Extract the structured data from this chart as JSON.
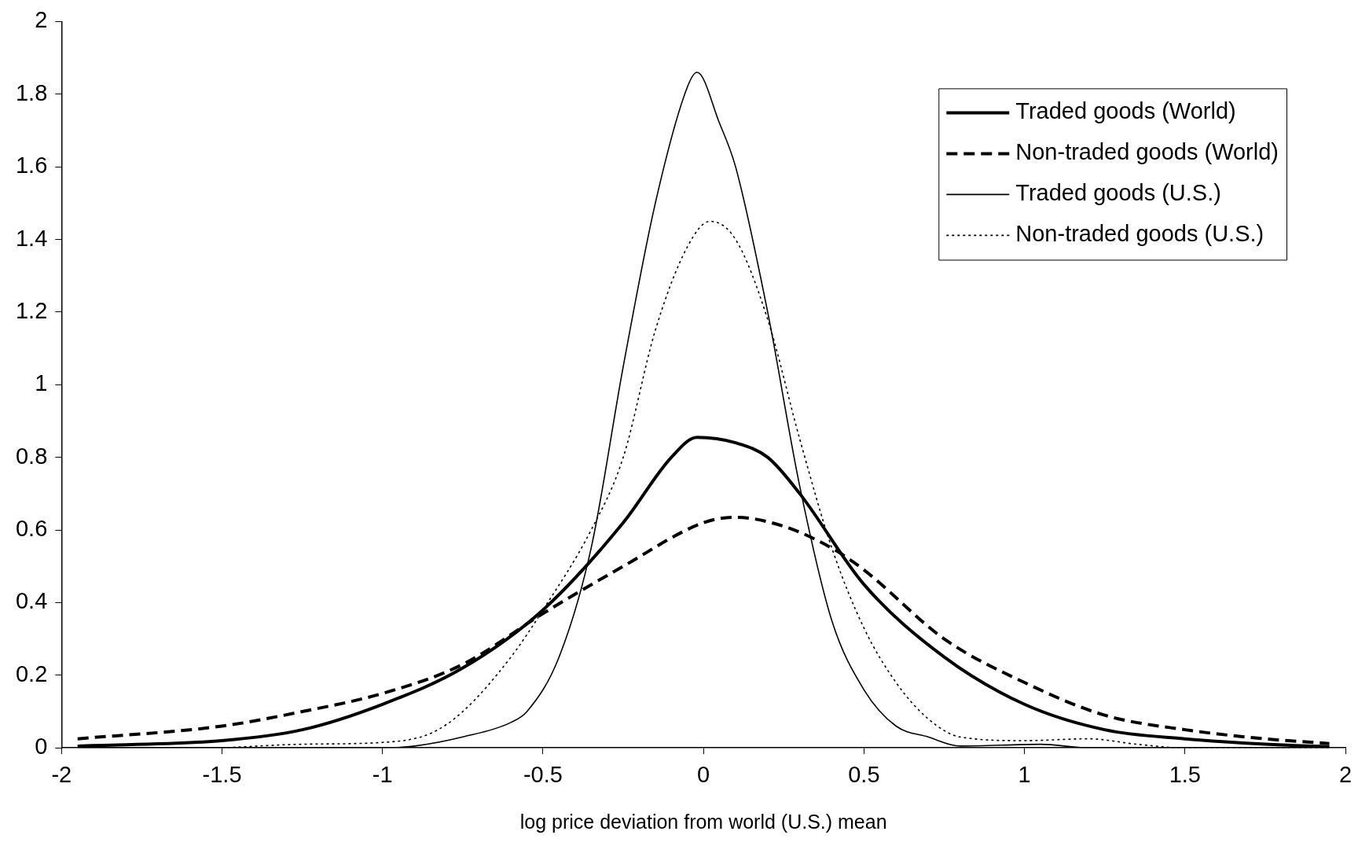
{
  "chart_data": {
    "type": "line",
    "xlabel": "log price deviation from world (U.S.) mean",
    "xlim": [
      -2,
      2
    ],
    "xticks": [
      -2,
      -1.5,
      -1,
      -0.5,
      0,
      0.5,
      1,
      1.5,
      2
    ],
    "ylim": [
      0,
      2
    ],
    "yticks": [
      0,
      0.2,
      0.4,
      0.6,
      0.8,
      1,
      1.2,
      1.4,
      1.6,
      1.8,
      2
    ],
    "grid": false,
    "legend": "top right",
    "marker": "none",
    "series": [
      {
        "name": "Traded goods (World)",
        "color": "#000000",
        "line_style": "solid",
        "x": [
          -1.95,
          -1.5,
          -1.25,
          -1,
          -0.75,
          -0.5,
          -0.25,
          -0.1,
          -0.02,
          0.1,
          0.2,
          0.3,
          0.5,
          0.75,
          1,
          1.25,
          1.5,
          1.75,
          1.95
        ],
        "values": [
          0.005,
          0.02,
          0.05,
          0.12,
          0.22,
          0.38,
          0.62,
          0.8,
          0.855,
          0.84,
          0.8,
          0.7,
          0.45,
          0.25,
          0.12,
          0.05,
          0.025,
          0.01,
          0.003
        ]
      },
      {
        "name": "Non-traded goods (World)",
        "color": "#000000",
        "line_style": "dashed",
        "x": [
          -1.95,
          -1.5,
          -1.25,
          -1,
          -0.75,
          -0.5,
          -0.25,
          0,
          0.1,
          0.25,
          0.4,
          0.5,
          0.75,
          1,
          1.25,
          1.5,
          1.75,
          1.95
        ],
        "values": [
          0.025,
          0.06,
          0.1,
          0.15,
          0.23,
          0.37,
          0.5,
          0.62,
          0.635,
          0.61,
          0.55,
          0.49,
          0.3,
          0.18,
          0.09,
          0.05,
          0.025,
          0.012
        ]
      },
      {
        "name": "Traded goods (U.S.)",
        "color": "#000000",
        "line_style": "solid",
        "x": [
          -1.95,
          -1,
          -0.9,
          -0.75,
          -0.6,
          -0.55,
          -0.45,
          -0.35,
          -0.25,
          -0.15,
          -0.05,
          -0.02,
          0.05,
          0.1,
          0.2,
          0.3,
          0.4,
          0.5,
          0.6,
          0.7,
          0.8,
          1.05,
          1.2,
          1.95
        ],
        "values": [
          0,
          0,
          0.005,
          0.03,
          0.07,
          0.1,
          0.25,
          0.55,
          1.05,
          1.5,
          1.82,
          1.86,
          1.72,
          1.6,
          1.2,
          0.72,
          0.35,
          0.16,
          0.06,
          0.03,
          0.005,
          0.01,
          0,
          0
        ]
      },
      {
        "name": "Non-traded goods (U.S.)",
        "color": "#000000",
        "line_style": "dotted",
        "x": [
          -1.5,
          -1.25,
          -1,
          -0.85,
          -0.75,
          -0.6,
          -0.5,
          -0.35,
          -0.25,
          -0.15,
          -0.05,
          0.02,
          0.1,
          0.2,
          0.3,
          0.4,
          0.5,
          0.6,
          0.7,
          0.8,
          1,
          1.2,
          1.35,
          1.5,
          1.95
        ],
        "values": [
          0,
          0.01,
          0.015,
          0.04,
          0.1,
          0.25,
          0.38,
          0.6,
          0.8,
          1.15,
          1.38,
          1.45,
          1.4,
          1.18,
          0.85,
          0.55,
          0.33,
          0.18,
          0.08,
          0.03,
          0.02,
          0.025,
          0.01,
          0,
          0
        ]
      }
    ]
  }
}
